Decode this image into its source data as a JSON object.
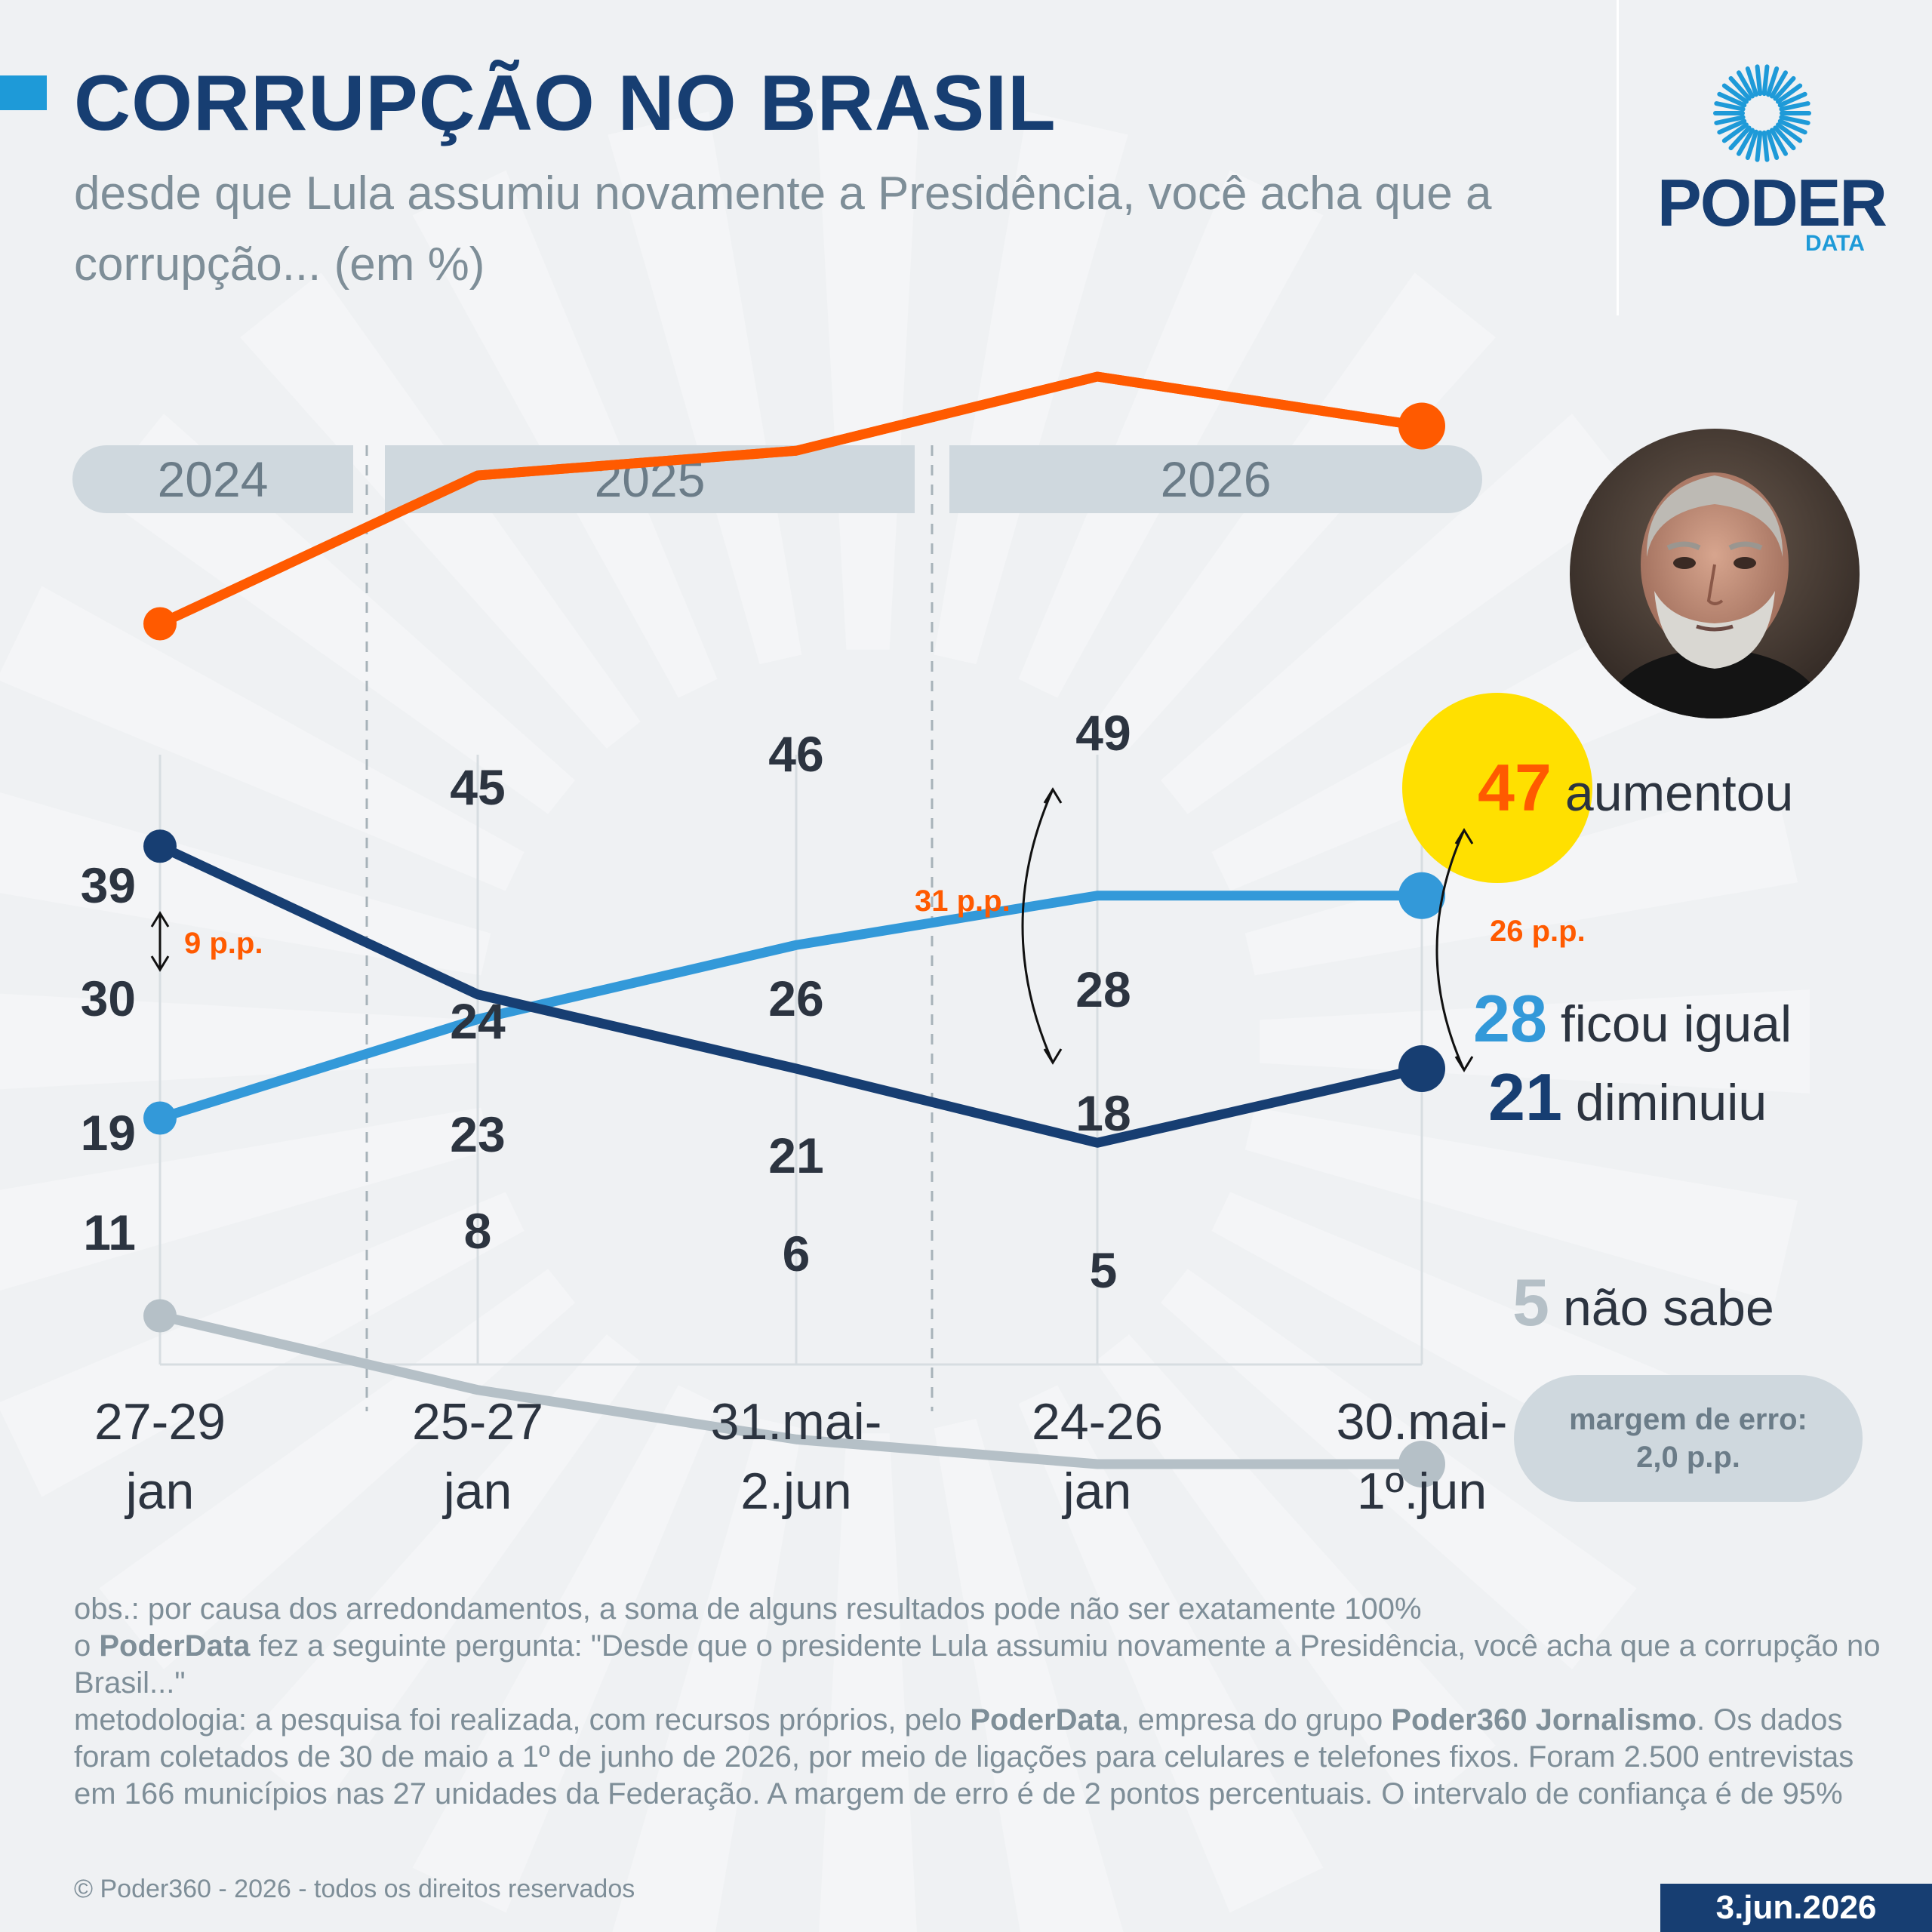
{
  "header": {
    "title": "CORRUPÇÃO NO BRASIL",
    "subtitle": "desde que Lula assumiu novamente a Presidência, você acha que a corrupção... (em %)"
  },
  "logo": {
    "word": "PODER",
    "sub": "DATA"
  },
  "years": [
    "2024",
    "2025",
    "2026"
  ],
  "chart_data": {
    "type": "line",
    "x": [
      "27-29 jan",
      "25-27 jan",
      "31.mai-2.jun",
      "24-26 jan",
      "30.mai-1º.jun"
    ],
    "x_lines": [
      [
        "27-29",
        "jan"
      ],
      [
        "25-27",
        "jan"
      ],
      [
        "31.mai-",
        "2.jun"
      ],
      [
        "24-26",
        "jan"
      ],
      [
        "30.mai-",
        "1º.jun"
      ]
    ],
    "series": [
      {
        "name": "aumentou",
        "color": "#ff5a00",
        "values": [
          39,
          45,
          46,
          49,
          47
        ]
      },
      {
        "name": "ficou igual",
        "color": "#3399d9",
        "values": [
          19,
          23,
          26,
          28,
          28
        ]
      },
      {
        "name": "diminuiu",
        "color": "#173e72",
        "values": [
          30,
          24,
          21,
          18,
          21
        ]
      },
      {
        "name": "não sabe",
        "color": "#b5c0c7",
        "values": [
          11,
          8,
          6,
          5,
          5
        ]
      }
    ],
    "annotations": [
      "9 p.p.",
      "31 p.p.",
      "26 p.p."
    ],
    "grid": true
  },
  "margin_of_error": {
    "line1": "margem de erro:",
    "line2": "2,0 p.p."
  },
  "notes": {
    "obs": "obs.: por causa dos arredondamentos, a soma de alguns resultados pode não ser exatamente 100%",
    "q_prefix": "o ",
    "q_brand": "PoderData",
    "q_text": " fez a seguinte pergunta: \"Desde que o presidente Lula assumiu novamente a Presidência, você acha que a corrupção no Brasil...\"",
    "m_prefix": "metodologia: a pesquisa foi realizada, com recursos próprios, pelo ",
    "m_brand": "PoderData",
    "m_mid": ", empresa do grupo ",
    "m_group": "Poder360 Jornalismo",
    "m_text": ". Os dados foram coletados de 30 de maio a 1º de junho de 2026, por meio de ligações para celulares e telefones fixos. Foram 2.500 entrevistas em 166 municípios nas 27 unidades da Federação. A margem de erro é de 2 pontos percentuais. O intervalo de confiança é de 95%"
  },
  "copyright": "© Poder360 - 2026 - todos os direitos reservados",
  "date": "3.jun.2026"
}
